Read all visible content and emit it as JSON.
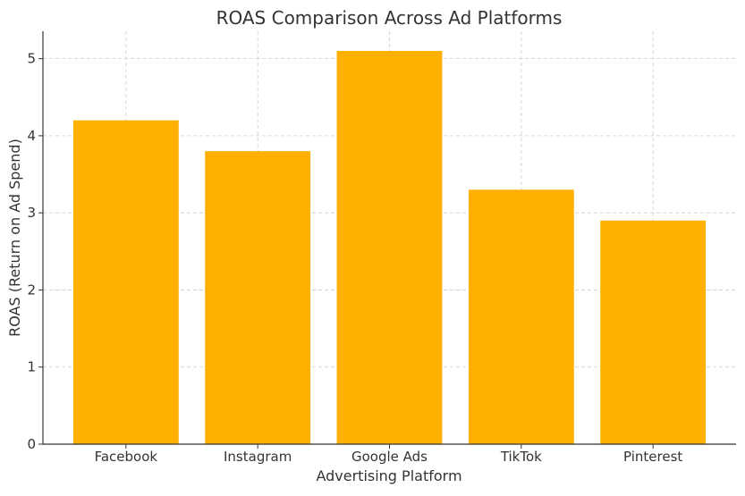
{
  "chart_data": {
    "type": "bar",
    "title": "ROAS Comparison Across Ad Platforms",
    "xlabel": "Advertising Platform",
    "ylabel": "ROAS (Return on Ad Spend)",
    "categories": [
      "Facebook",
      "Instagram",
      "Google Ads",
      "TikTok",
      "Pinterest"
    ],
    "values": [
      4.2,
      3.8,
      5.1,
      3.3,
      2.9
    ],
    "ylim": [
      0,
      5.355
    ],
    "yticks": [
      "0",
      "1",
      "2",
      "3",
      "4",
      "5"
    ],
    "grid": true,
    "bar_color": "#FFB000"
  }
}
